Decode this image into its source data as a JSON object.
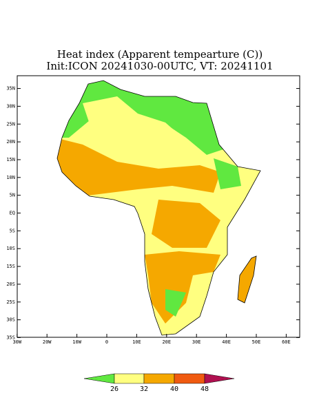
{
  "header": {
    "title_line1": "Heat index (Apparent tempearture (C))",
    "title_line2": "Init:ICON 20241030-00UTC, VT: 20241101"
  },
  "map": {
    "lat_ticks": [
      {
        "value": 35,
        "label": "35N"
      },
      {
        "value": 30,
        "label": "30N"
      },
      {
        "value": 25,
        "label": "25N"
      },
      {
        "value": 20,
        "label": "20N"
      },
      {
        "value": 15,
        "label": "15N"
      },
      {
        "value": 10,
        "label": "10N"
      },
      {
        "value": 5,
        "label": "5N"
      },
      {
        "value": 0,
        "label": "EQ"
      },
      {
        "value": -5,
        "label": "5S"
      },
      {
        "value": -10,
        "label": "10S"
      },
      {
        "value": -15,
        "label": "15S"
      },
      {
        "value": -20,
        "label": "20S"
      },
      {
        "value": -25,
        "label": "25S"
      },
      {
        "value": -30,
        "label": "30S"
      },
      {
        "value": -35,
        "label": "35S"
      }
    ],
    "lon_ticks": [
      {
        "value": -30,
        "label": "30W"
      },
      {
        "value": -20,
        "label": "20W"
      },
      {
        "value": -10,
        "label": "10W"
      },
      {
        "value": 0,
        "label": "0"
      },
      {
        "value": 10,
        "label": "10E"
      },
      {
        "value": 20,
        "label": "20E"
      },
      {
        "value": 30,
        "label": "30E"
      },
      {
        "value": 40,
        "label": "40E"
      },
      {
        "value": 50,
        "label": "50E"
      },
      {
        "value": 60,
        "label": "60E"
      }
    ]
  },
  "colorbar": {
    "ticks": [
      26,
      32,
      40,
      48
    ]
  }
}
